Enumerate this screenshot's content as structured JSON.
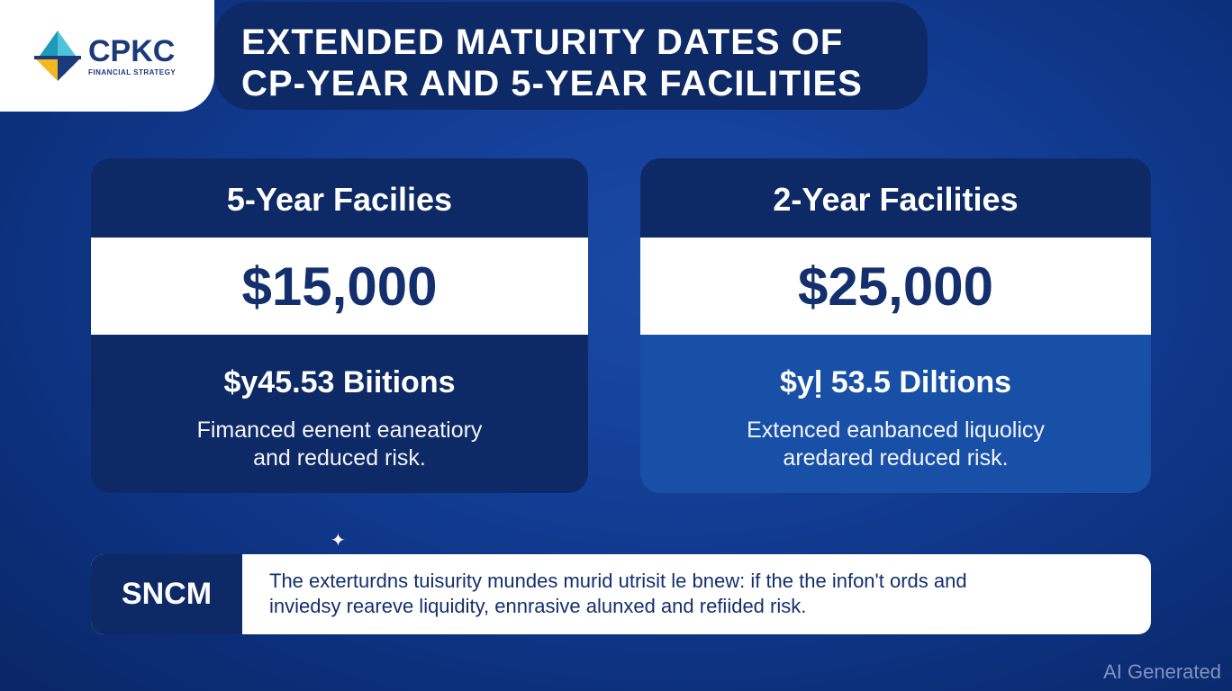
{
  "logo": {
    "name": "CPKC",
    "subtitle": "FINANCIAL STRATEGY",
    "colors": {
      "teal": "#1f9ab8",
      "yellow": "#f2b721",
      "navy": "#1b3a7a"
    }
  },
  "title": {
    "line1": "EXTENDED MATURITY DATES OF",
    "line2": "CP-YEAR AND 5-YEAR FACILITIES"
  },
  "cards": [
    {
      "heading": "5-Year Facilies",
      "amount": "$15,000",
      "value": "$y45.53 Biitions",
      "desc_line1": "Fimanced eenent eaneatiory",
      "desc_line2": "and reduced risk."
    },
    {
      "heading": "2-Year Facilities",
      "amount": "$25,000",
      "value": "$yḷ 53.5 Diltions",
      "desc_line1": "Extenced eanbanced liquolicy",
      "desc_line2": "aredared reduced risk."
    }
  ],
  "sparkle_glyph": "✦",
  "bottom": {
    "label": "SNCM",
    "line1": "The exterturdns tuisurity mundes murid utrisit le bnew: if the the infon't ords and",
    "line2": "inviedsy reareve liquidity, ennrasive alunxed and refiided risk."
  },
  "watermark": "AI Generated",
  "colors": {
    "background": "#123d94",
    "panel_dark": "#0d2a66",
    "panel_blue": "#1850a8",
    "text_navy": "#132f6e"
  }
}
